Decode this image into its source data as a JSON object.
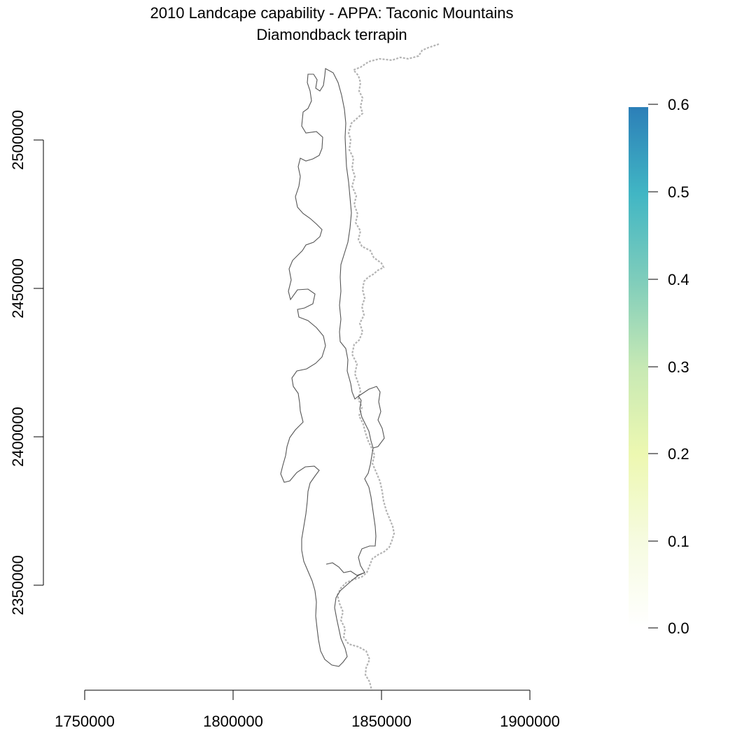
{
  "title": {
    "line1": "2010 Landcape capability - APPA: Taconic Mountains",
    "line2": "Diamondback terrapin"
  },
  "axes": {
    "x_ticks": [
      "1750000",
      "1800000",
      "1850000",
      "1900000"
    ],
    "y_ticks": [
      "2350000",
      "2400000",
      "2450000",
      "2500000"
    ],
    "x_range": [
      1750000,
      1900000
    ],
    "y_range": [
      2350000,
      2500000
    ]
  },
  "legend": {
    "type": "continuous-colorbar",
    "placement": "right",
    "ticks": [
      "0.0",
      "0.1",
      "0.2",
      "0.3",
      "0.4",
      "0.5",
      "0.6"
    ],
    "range": [
      0.0,
      0.6
    ],
    "colors": [
      "#ffffff",
      "#f6fbe0",
      "#edf8b1",
      "#c7e9b4",
      "#7fcdbb",
      "#41b6c4",
      "#2c7fb8"
    ]
  },
  "map": {
    "boundary_color": "#555555",
    "state_line_color": "#b3b3b3"
  }
}
